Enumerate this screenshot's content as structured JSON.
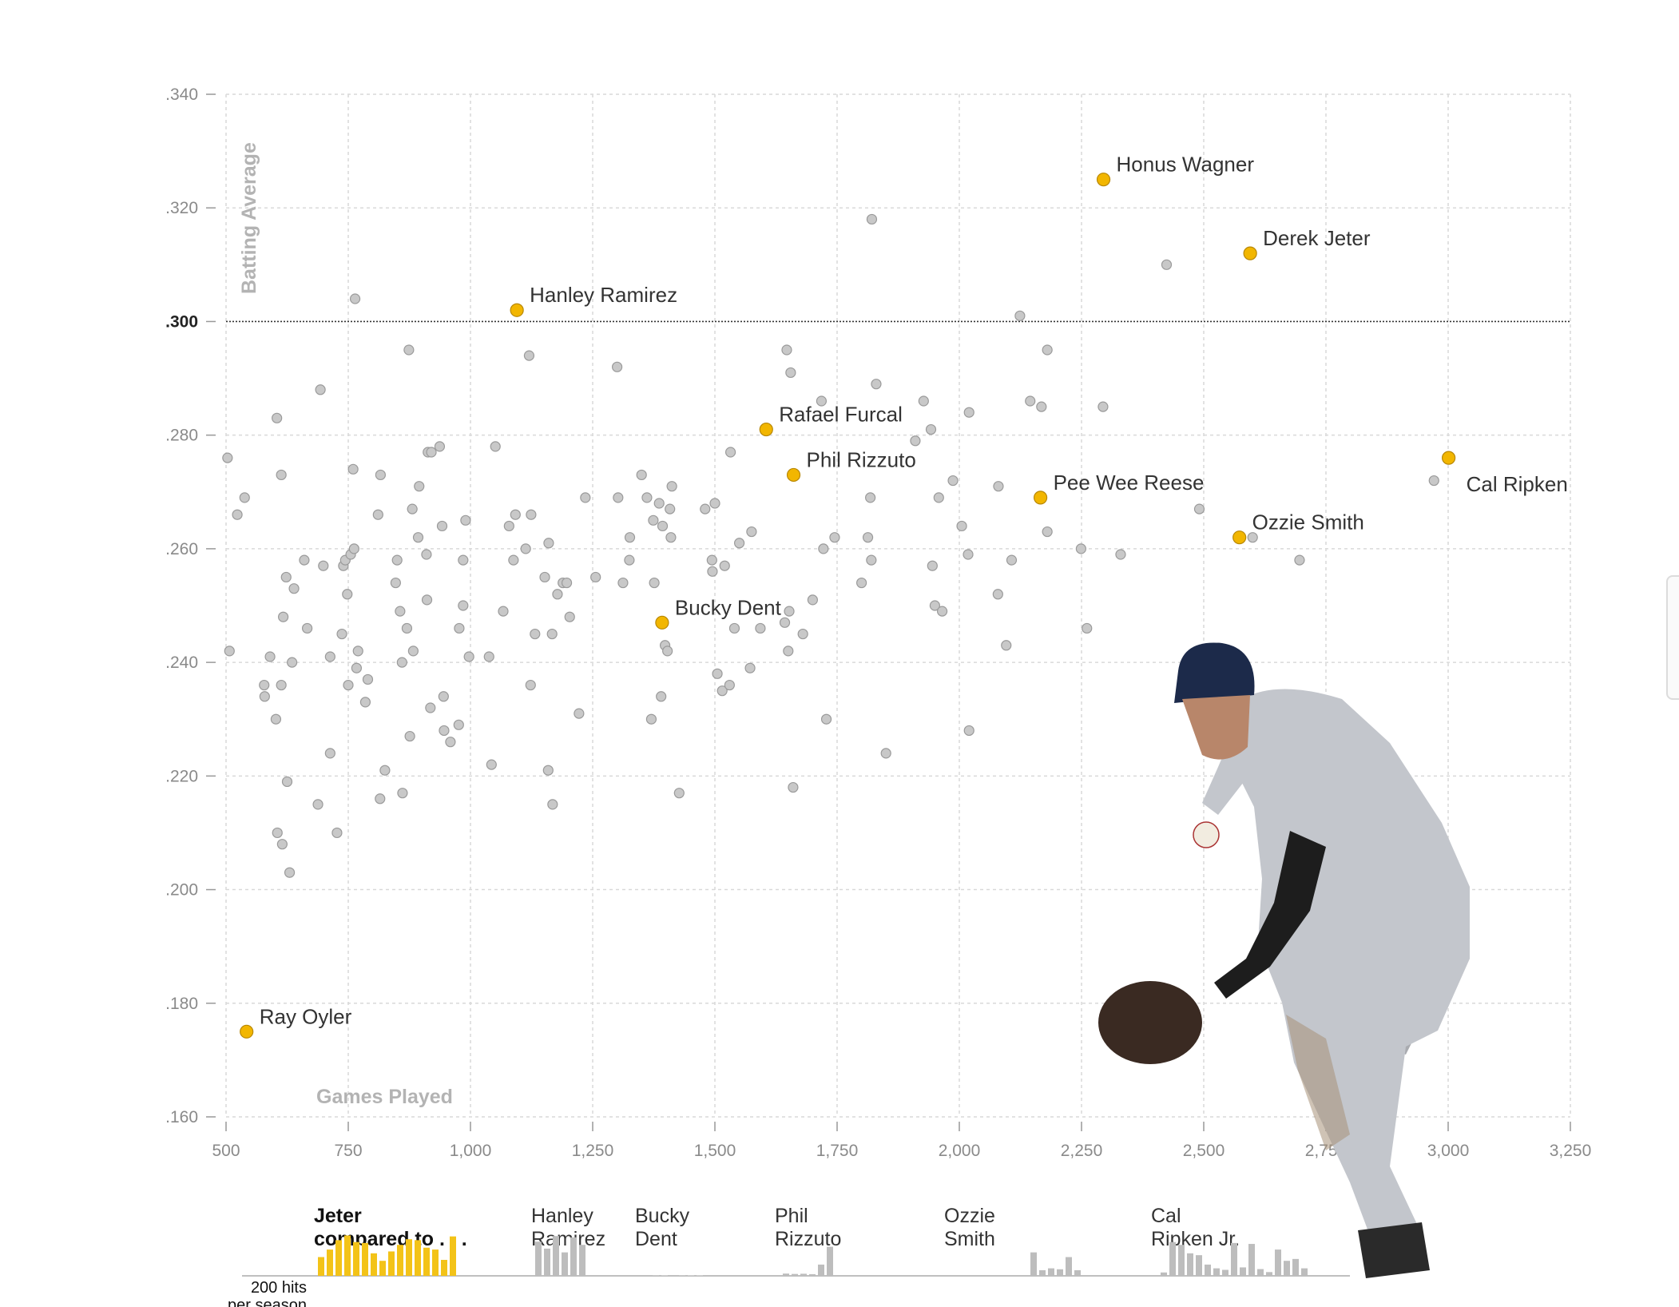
{
  "chart_data": {
    "type": "scatter",
    "xlabel": "Games Played",
    "ylabel": "Batting Average",
    "xlim": [
      500,
      3250
    ],
    "ylim": [
      0.16,
      0.34
    ],
    "x_ticks": [
      500,
      750,
      1000,
      1250,
      1500,
      1750,
      2000,
      2250,
      2500,
      2750,
      3000,
      3250
    ],
    "x_tick_labels": [
      "500",
      "750",
      "1,000",
      "1,250",
      "1,500",
      "1,750",
      "2,000",
      "2,250",
      "2,500",
      "2,750",
      "3,000",
      "3,250"
    ],
    "y_ticks": [
      0.16,
      0.18,
      0.2,
      0.22,
      0.24,
      0.26,
      0.28,
      0.3,
      0.32,
      0.34
    ],
    "y_tick_labels": [
      ".160",
      ".180",
      ".200",
      ".220",
      ".240",
      ".260",
      ".280",
      ".300",
      ".320",
      ".340"
    ],
    "reference_line": {
      "y": 0.3,
      "label": ".300"
    },
    "highlighted": [
      {
        "name": "Honus Wagner",
        "x": 2295,
        "y": 0.325
      },
      {
        "name": "Derek Jeter",
        "x": 2595,
        "y": 0.312
      },
      {
        "name": "Hanley Ramirez",
        "x": 1095,
        "y": 0.302
      },
      {
        "name": "Rafael Furcal",
        "x": 1605,
        "y": 0.281
      },
      {
        "name": "Phil Rizzuto",
        "x": 1661,
        "y": 0.273
      },
      {
        "name": "Pee Wee Reese",
        "x": 2166,
        "y": 0.269
      },
      {
        "name": "Cal Ripken",
        "x": 3001,
        "y": 0.276
      },
      {
        "name": "Ozzie Smith",
        "x": 2573,
        "y": 0.262
      },
      {
        "name": "Bucky Dent",
        "x": 1392,
        "y": 0.247
      },
      {
        "name": "Ray Oyler",
        "x": 542,
        "y": 0.175
      }
    ],
    "others": [
      [
        503,
        0.276
      ],
      [
        507,
        0.242
      ],
      [
        523,
        0.266
      ],
      [
        538,
        0.269
      ],
      [
        578,
        0.236
      ],
      [
        579,
        0.234
      ],
      [
        590,
        0.241
      ],
      [
        602,
        0.23
      ],
      [
        604,
        0.283
      ],
      [
        605,
        0.21
      ],
      [
        613,
        0.273
      ],
      [
        613,
        0.236
      ],
      [
        615,
        0.208
      ],
      [
        617,
        0.248
      ],
      [
        623,
        0.255
      ],
      [
        625,
        0.219
      ],
      [
        630,
        0.203
      ],
      [
        635,
        0.24
      ],
      [
        639,
        0.253
      ],
      [
        660,
        0.258
      ],
      [
        666,
        0.246
      ],
      [
        688,
        0.215
      ],
      [
        693,
        0.288
      ],
      [
        699,
        0.257
      ],
      [
        713,
        0.241
      ],
      [
        713,
        0.224
      ],
      [
        727,
        0.21
      ],
      [
        737,
        0.245
      ],
      [
        740,
        0.257
      ],
      [
        744,
        0.258
      ],
      [
        748,
        0.252
      ],
      [
        750,
        0.236
      ],
      [
        755,
        0.259
      ],
      [
        760,
        0.274
      ],
      [
        762,
        0.26
      ],
      [
        764,
        0.304
      ],
      [
        767,
        0.239
      ],
      [
        770,
        0.242
      ],
      [
        785,
        0.233
      ],
      [
        790,
        0.237
      ],
      [
        811,
        0.266
      ],
      [
        815,
        0.216
      ],
      [
        816,
        0.273
      ],
      [
        825,
        0.221
      ],
      [
        847,
        0.254
      ],
      [
        850,
        0.258
      ],
      [
        856,
        0.249
      ],
      [
        860,
        0.24
      ],
      [
        861,
        0.217
      ],
      [
        870,
        0.246
      ],
      [
        874,
        0.295
      ],
      [
        876,
        0.227
      ],
      [
        881,
        0.267
      ],
      [
        883,
        0.242
      ],
      [
        893,
        0.262
      ],
      [
        895,
        0.271
      ],
      [
        910,
        0.259
      ],
      [
        911,
        0.251
      ],
      [
        913,
        0.277
      ],
      [
        918,
        0.232
      ],
      [
        920,
        0.277
      ],
      [
        937,
        0.278
      ],
      [
        942,
        0.264
      ],
      [
        945,
        0.234
      ],
      [
        946,
        0.228
      ],
      [
        959,
        0.226
      ],
      [
        976,
        0.229
      ],
      [
        977,
        0.246
      ],
      [
        985,
        0.258
      ],
      [
        985,
        0.25
      ],
      [
        990,
        0.265
      ],
      [
        997,
        0.241
      ],
      [
        1038,
        0.241
      ],
      [
        1043,
        0.222
      ],
      [
        1051,
        0.278
      ],
      [
        1067,
        0.249
      ],
      [
        1079,
        0.264
      ],
      [
        1088,
        0.258
      ],
      [
        1092,
        0.266
      ],
      [
        1113,
        0.26
      ],
      [
        1120,
        0.294
      ],
      [
        1123,
        0.236
      ],
      [
        1124,
        0.266
      ],
      [
        1132,
        0.245
      ],
      [
        1152,
        0.255
      ],
      [
        1159,
        0.221
      ],
      [
        1160,
        0.261
      ],
      [
        1167,
        0.245
      ],
      [
        1168,
        0.215
      ],
      [
        1178,
        0.252
      ],
      [
        1189,
        0.254
      ],
      [
        1197,
        0.254
      ],
      [
        1203,
        0.248
      ],
      [
        1222,
        0.231
      ],
      [
        1235,
        0.269
      ],
      [
        1256,
        0.255
      ],
      [
        1300,
        0.292
      ],
      [
        1302,
        0.269
      ],
      [
        1312,
        0.254
      ],
      [
        1325,
        0.258
      ],
      [
        1326,
        0.262
      ],
      [
        1350,
        0.273
      ],
      [
        1361,
        0.269
      ],
      [
        1370,
        0.23
      ],
      [
        1374,
        0.265
      ],
      [
        1376,
        0.254
      ],
      [
        1386,
        0.268
      ],
      [
        1390,
        0.234
      ],
      [
        1393,
        0.264
      ],
      [
        1398,
        0.243
      ],
      [
        1403,
        0.242
      ],
      [
        1408,
        0.267
      ],
      [
        1410,
        0.262
      ],
      [
        1412,
        0.271
      ],
      [
        1427,
        0.217
      ],
      [
        1480,
        0.267
      ],
      [
        1494,
        0.258
      ],
      [
        1495,
        0.256
      ],
      [
        1500,
        0.268
      ],
      [
        1505,
        0.238
      ],
      [
        1515,
        0.235
      ],
      [
        1520,
        0.257
      ],
      [
        1530,
        0.236
      ],
      [
        1532,
        0.277
      ],
      [
        1540,
        0.246
      ],
      [
        1550,
        0.261
      ],
      [
        1572,
        0.239
      ],
      [
        1575,
        0.263
      ],
      [
        1593,
        0.246
      ],
      [
        1643,
        0.247
      ],
      [
        1647,
        0.295
      ],
      [
        1650,
        0.242
      ],
      [
        1652,
        0.249
      ],
      [
        1655,
        0.291
      ],
      [
        1660,
        0.218
      ],
      [
        1680,
        0.245
      ],
      [
        1700,
        0.251
      ],
      [
        1718,
        0.286
      ],
      [
        1722,
        0.26
      ],
      [
        1728,
        0.23
      ],
      [
        1745,
        0.262
      ],
      [
        1800,
        0.254
      ],
      [
        1813,
        0.262
      ],
      [
        1818,
        0.269
      ],
      [
        1820,
        0.258
      ],
      [
        1821,
        0.318
      ],
      [
        1830,
        0.289
      ],
      [
        1850,
        0.224
      ],
      [
        1910,
        0.279
      ],
      [
        1927,
        0.286
      ],
      [
        1942,
        0.281
      ],
      [
        1945,
        0.257
      ],
      [
        1950,
        0.25
      ],
      [
        1958,
        0.269
      ],
      [
        1965,
        0.249
      ],
      [
        1987,
        0.272
      ],
      [
        2005,
        0.264
      ],
      [
        2018,
        0.259
      ],
      [
        2020,
        0.228
      ],
      [
        2020,
        0.284
      ],
      [
        2079,
        0.252
      ],
      [
        2080,
        0.271
      ],
      [
        2096,
        0.243
      ],
      [
        2107,
        0.258
      ],
      [
        2124,
        0.301
      ],
      [
        2145,
        0.286
      ],
      [
        2168,
        0.285
      ],
      [
        2180,
        0.295
      ],
      [
        2180,
        0.263
      ],
      [
        2249,
        0.26
      ],
      [
        2261,
        0.246
      ],
      [
        2294,
        0.285
      ],
      [
        2330,
        0.259
      ],
      [
        2424,
        0.31
      ],
      [
        2491,
        0.267
      ],
      [
        2600,
        0.262
      ],
      [
        2696,
        0.258
      ],
      [
        2971,
        0.272
      ]
    ],
    "comparison": {
      "title_lines": [
        "Jeter",
        "compared to . . ."
      ],
      "scale_label_lines": [
        "200 hits",
        "per season"
      ],
      "players": [
        {
          "name_lines": [
            "Hanley",
            "Ramirez"
          ],
          "values": [
            182,
            145,
            212,
            125,
            205,
            165
          ]
        },
        {
          "name_lines": [
            "Bucky",
            "Dent"
          ],
          "values": [
            3,
            2,
            4,
            3,
            2,
            2
          ]
        },
        {
          "name_lines": [
            "Phil",
            "Rizzuto"
          ],
          "values": [
            12,
            10,
            11,
            9,
            60,
            155
          ]
        },
        {
          "name_lines": [
            "Ozzie",
            "Smith"
          ],
          "values": [
            125,
            30,
            40,
            35,
            100,
            30
          ]
        },
        {
          "name_lines": [
            "Cal",
            "Ripken Jr."
          ],
          "values": [
            18,
            180,
            165,
            120,
            110,
            60,
            40,
            32,
            175,
            45,
            170,
            36,
            20,
            140,
            80,
            90,
            40
          ]
        }
      ],
      "jeter_values": [
        100,
        140,
        190,
        215,
        180,
        175,
        120,
        80,
        130,
        165,
        195,
        190,
        150,
        140,
        85,
        210
      ]
    }
  }
}
